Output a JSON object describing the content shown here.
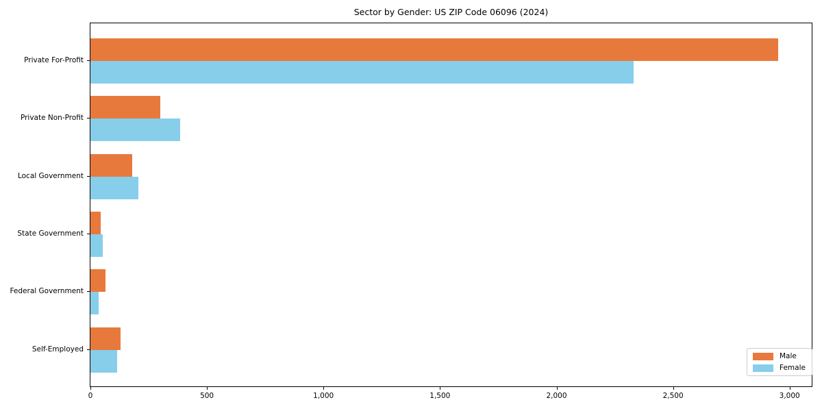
{
  "chart_data": {
    "type": "bar",
    "orientation": "horizontal",
    "title": "Sector by Gender: US ZIP Code 06096 (2024)",
    "categories": [
      "Private For-Profit",
      "Private Non-Profit",
      "Local Government",
      "State Government",
      "Federal Government",
      "Self-Employed"
    ],
    "series": [
      {
        "name": "Male",
        "color": "#E8793D",
        "values": [
          2950,
          300,
          180,
          45,
          65,
          130
        ]
      },
      {
        "name": "Female",
        "color": "#87CEEB",
        "values": [
          2330,
          385,
          207,
          52,
          35,
          115
        ]
      }
    ],
    "xlabel": "",
    "ylabel": "",
    "xticks": [
      0,
      500,
      1000,
      1500,
      2000,
      2500,
      3000
    ],
    "xtick_labels": [
      "0",
      "500",
      "1,000",
      "1,500",
      "2,000",
      "2,500",
      "3,000"
    ],
    "xlim": [
      0,
      3095
    ],
    "grid": false,
    "legend_position": "lower right",
    "colors": {
      "male": "#E8793D",
      "female": "#87CEEB",
      "axis": "#000000",
      "legend_border": "#cccccc",
      "background": "#ffffff"
    }
  }
}
